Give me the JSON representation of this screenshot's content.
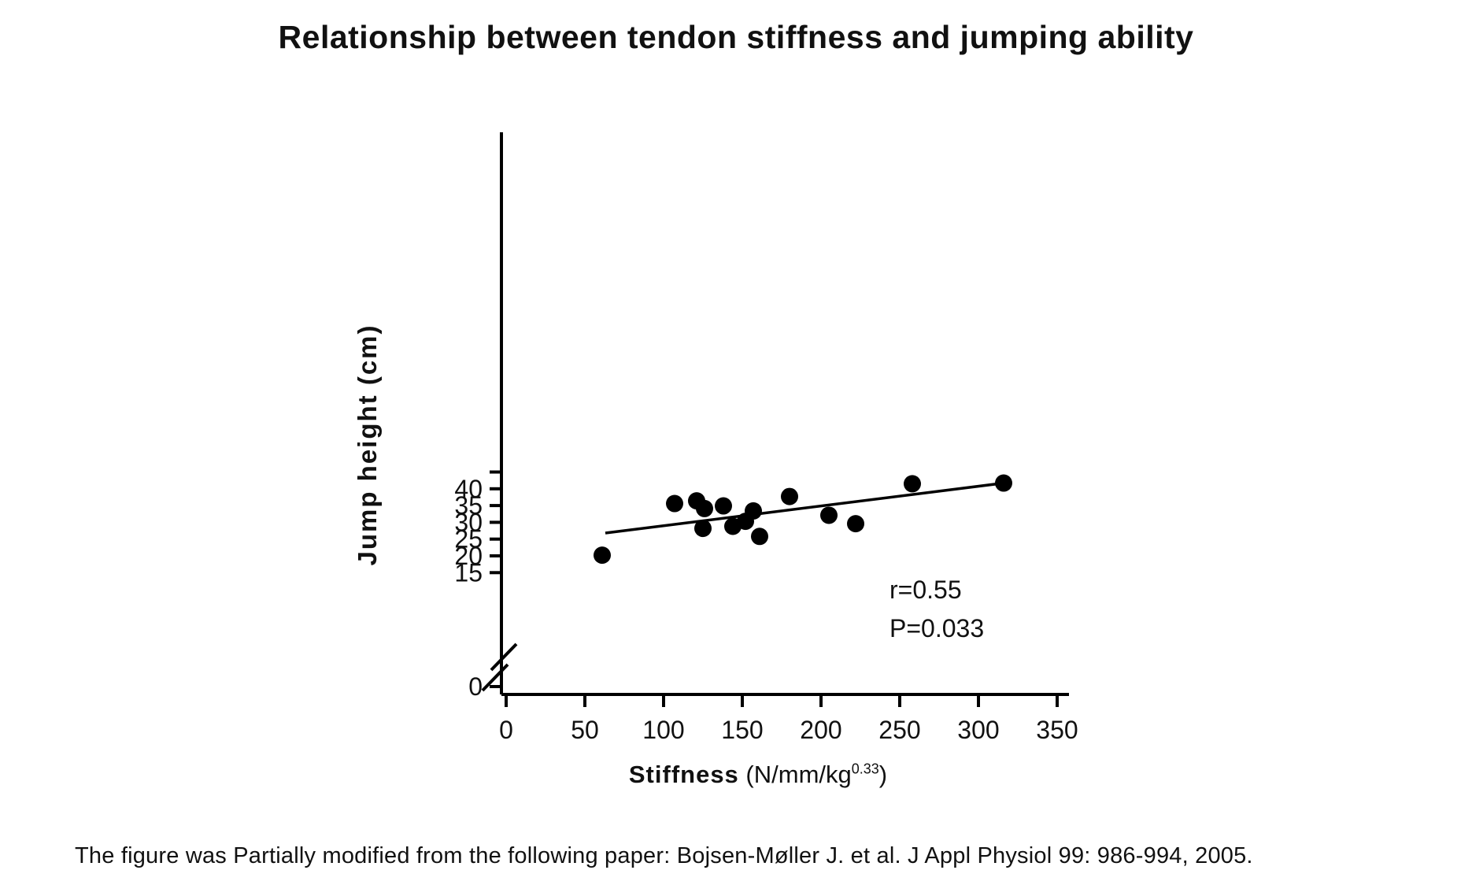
{
  "title": "Relationship between tendon stiffness and jumping ability",
  "footer": "The figure was Partially modified from the following paper: Bojsen-Møller J. et al. J Appl Physiol 99: 986-994, 2005.",
  "colors": {
    "ink": "#000000",
    "text": "#111111",
    "background": "#ffffff"
  },
  "chart_data": {
    "type": "scatter",
    "title": "Relationship between tendon stiffness and jumping ability",
    "xlabel": "Stiffness",
    "xlabel_unit_open": " (N/mm/kg",
    "xlabel_unit_sup": "0.33",
    "xlabel_unit_close": ")",
    "ylabel": "Jump height (cm)",
    "x_ticks": [
      0,
      50,
      100,
      150,
      200,
      250,
      300,
      350
    ],
    "y_ticks": [
      0,
      15,
      20,
      25,
      30,
      35,
      40
    ],
    "y_axis_break": true,
    "xlim": [
      0,
      350
    ],
    "ylim": [
      15,
      45
    ],
    "grid": false,
    "legend": null,
    "marker": {
      "shape": "circle",
      "color": "#000000",
      "radius_px": 11
    },
    "points": [
      [
        61,
        20.2
      ],
      [
        107,
        35.6
      ],
      [
        121,
        36.4
      ],
      [
        125,
        28.2
      ],
      [
        126,
        34.1
      ],
      [
        138,
        34.9
      ],
      [
        144,
        28.8
      ],
      [
        152,
        30.3
      ],
      [
        157,
        33.4
      ],
      [
        161,
        25.8
      ],
      [
        180,
        37.7
      ],
      [
        205,
        32.1
      ],
      [
        222,
        29.6
      ],
      [
        258,
        41.5
      ],
      [
        316,
        41.7
      ]
    ],
    "trend_line": {
      "x1": 63,
      "y1": 26.8,
      "x2": 316,
      "y2": 41.7
    },
    "annotations": [
      {
        "text": "r=0.55"
      },
      {
        "text": "P=0.033"
      }
    ]
  }
}
